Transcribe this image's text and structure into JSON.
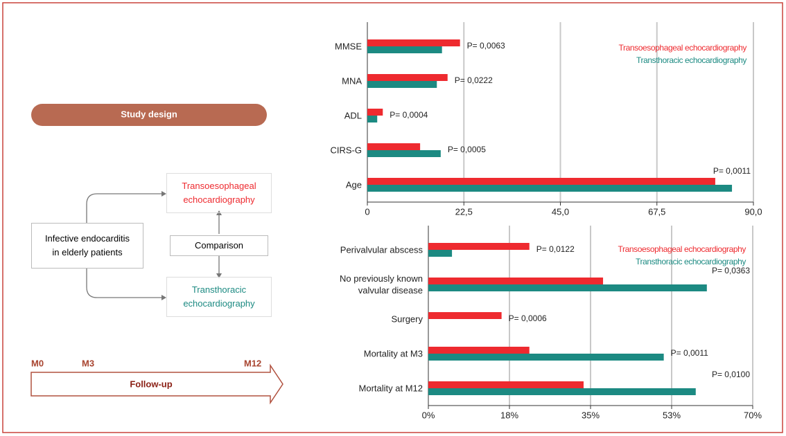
{
  "chart_data": [
    {
      "type": "bar",
      "orientation": "horizontal",
      "categories": [
        "MMSE",
        "MNA",
        "ADL",
        "CIRS-G",
        "Age"
      ],
      "series": [
        {
          "name": "Transoesophageal echocardiography",
          "color": "#ee2a2f",
          "values": [
            21.6,
            18.7,
            3.6,
            12.3,
            81.1
          ]
        },
        {
          "name": "Transthoracic echocardiography",
          "color": "#1c8a82",
          "values": [
            17.4,
            16.2,
            2.3,
            17.1,
            85.0
          ]
        }
      ],
      "annotations": [
        "P= 0,0063",
        "P= 0,0222",
        "P= 0,0004",
        "P= 0,0005",
        "P= 0,0011"
      ],
      "xlim": [
        0,
        90
      ],
      "xticks": [
        0,
        {
          "value": 22.5,
          "label": "22,5"
        },
        {
          "value": 45,
          "label": "45,0"
        },
        {
          "value": 67.5,
          "label": "67,5"
        },
        {
          "value": 90,
          "label": "90,0"
        }
      ],
      "grid": true,
      "legend": "upper right"
    },
    {
      "type": "bar",
      "orientation": "horizontal",
      "categories": [
        "Perivalvular abscess",
        "No previously known\nvalvular disease",
        "Surgery",
        "Mortality at M3",
        "Mortality at M12"
      ],
      "series": [
        {
          "name": "Transoesophageal echocardiography",
          "color": "#ee2a2f",
          "values": [
            21.8,
            37.7,
            15.8,
            21.8,
            33.5
          ]
        },
        {
          "name": "Transthoracic echocardiography",
          "color": "#1c8a82",
          "values": [
            5.1,
            60.1,
            null,
            50.8,
            57.7
          ]
        }
      ],
      "annotations": [
        "P= 0,0122",
        "P= 0,0363",
        "P= 0,0006",
        "P= 0,0011",
        "P= 0,0100"
      ],
      "xlim": [
        0,
        70
      ],
      "xticks": [
        {
          "value": 0,
          "label": "0%"
        },
        {
          "value": 17.5,
          "label": "18%"
        },
        {
          "value": 35,
          "label": "35%"
        },
        {
          "value": 52.5,
          "label": "53%"
        },
        {
          "value": 70,
          "label": "70%"
        }
      ],
      "grid": true,
      "legend": "upper right"
    }
  ],
  "diagram": {
    "title": "Study design",
    "population": "Infective endocarditis\nin elderly patients",
    "arm_1": "Transoesophageal\nechocardiography",
    "comparison": "Comparison",
    "arm_2": "Transthoracic\nechocardiography",
    "timeline": {
      "milestones": [
        "M0",
        "M3",
        "M12"
      ],
      "label": "Follow-up"
    }
  }
}
